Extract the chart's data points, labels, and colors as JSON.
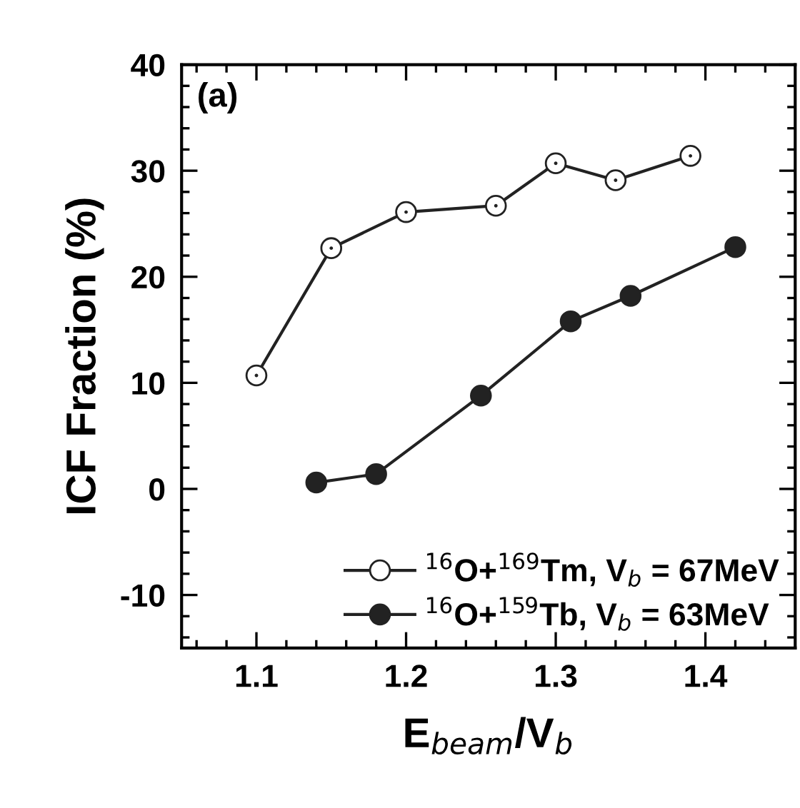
{
  "chart_data": {
    "type": "line",
    "xlabel": "E$_{beam}$/V$_{b}$",
    "ylabel": "ICF Fraction (%)",
    "annotations": [
      "(a)"
    ],
    "xlim": [
      1.05,
      1.46
    ],
    "ylim": [
      -15,
      40
    ],
    "xticks": [
      {
        "value": 1.06,
        "label": null
      },
      {
        "value": 1.08,
        "label": null
      },
      1.1,
      {
        "value": 1.12,
        "label": null
      },
      {
        "value": 1.14,
        "label": null
      },
      {
        "value": 1.16,
        "label": null
      },
      {
        "value": 1.18,
        "label": null
      },
      1.2,
      {
        "value": 1.22,
        "label": null
      },
      {
        "value": 1.24,
        "label": null
      },
      {
        "value": 1.26,
        "label": null
      },
      {
        "value": 1.28,
        "label": null
      },
      1.3,
      {
        "value": 1.32,
        "label": null
      },
      {
        "value": 1.34,
        "label": null
      },
      {
        "value": 1.36,
        "label": null
      },
      {
        "value": 1.38,
        "label": null
      },
      1.4,
      {
        "value": 1.42,
        "label": null
      },
      {
        "value": 1.44,
        "label": null
      }
    ],
    "yticks": [
      {
        "value": -14,
        "label": null
      },
      {
        "value": -12,
        "label": null
      },
      -10,
      {
        "value": -8,
        "label": null
      },
      {
        "value": -6,
        "label": null
      },
      {
        "value": -4,
        "label": null
      },
      {
        "value": -2,
        "label": null
      },
      0,
      {
        "value": 2,
        "label": null
      },
      {
        "value": 4,
        "label": null
      },
      {
        "value": 6,
        "label": null
      },
      {
        "value": 8,
        "label": null
      },
      10,
      {
        "value": 12,
        "label": null
      },
      {
        "value": 14,
        "label": null
      },
      {
        "value": 16,
        "label": null
      },
      {
        "value": 18,
        "label": null
      },
      20,
      {
        "value": 22,
        "label": null
      },
      {
        "value": 24,
        "label": null
      },
      {
        "value": 26,
        "label": null
      },
      {
        "value": 28,
        "label": null
      },
      30,
      {
        "value": 32,
        "label": null
      },
      {
        "value": 34,
        "label": null
      },
      {
        "value": 36,
        "label": null
      },
      {
        "value": 38,
        "label": null
      },
      40
    ],
    "marker": "circle",
    "line_style": "solid",
    "legend": "bottom right",
    "grid": false,
    "series": [
      {
        "name": "$^{16}$O+$^{169}$Tm, V$_{b}$ = 67MeV",
        "color": "#ffffff",
        "x": [
          1.1,
          1.15,
          1.2,
          1.26,
          1.3,
          1.34,
          1.39
        ],
        "values": [
          10.7,
          22.7,
          26.1,
          26.7,
          30.7,
          29.1,
          31.4
        ]
      },
      {
        "name": "$^{16}$O+$^{159}$Tb, V$_{b}$ = 63MeV",
        "color": "#222222",
        "x": [
          1.14,
          1.18,
          1.25,
          1.31,
          1.35,
          1.42
        ],
        "values": [
          0.6,
          1.4,
          8.8,
          15.8,
          18.2,
          22.8
        ]
      }
    ]
  }
}
